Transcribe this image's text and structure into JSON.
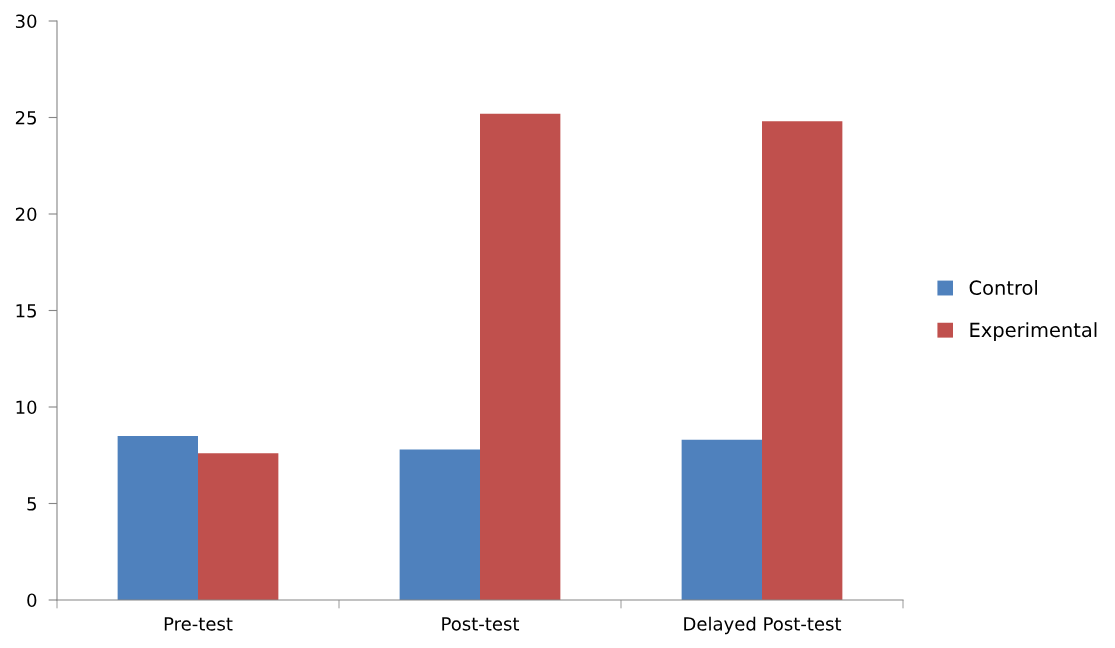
{
  "chart_data": {
    "type": "bar",
    "categories": [
      "Pre-test",
      "Post-test",
      "Delayed Post-test"
    ],
    "series": [
      {
        "name": "Control",
        "color": "#4f81bd",
        "values": [
          8.5,
          7.8,
          8.3
        ]
      },
      {
        "name": "Experimental",
        "color": "#c0504d",
        "values": [
          7.6,
          25.2,
          24.8
        ]
      }
    ],
    "ylim": [
      0,
      30
    ],
    "yticks": [
      0,
      5,
      10,
      15,
      20,
      25,
      30
    ],
    "grid": false,
    "legend": "right"
  }
}
